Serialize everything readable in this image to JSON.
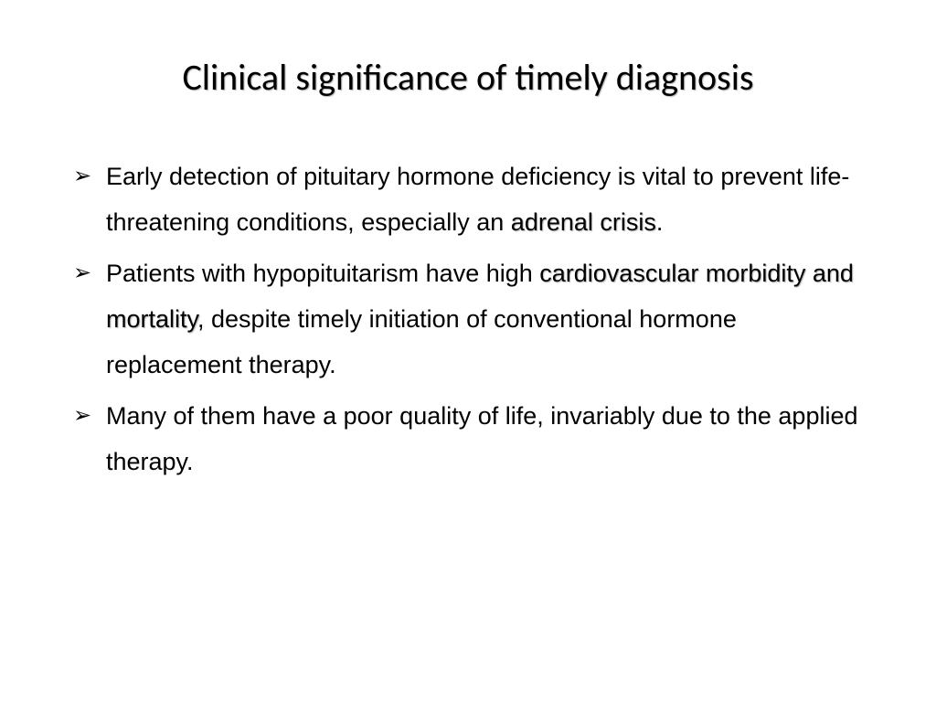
{
  "title": "Clinical significance of timely diagnosis",
  "bullets": [
    {
      "pre": "Early detection of pituitary hormone deficiency is vital to prevent life-threatening conditions, especially an ",
      "emph": "adrenal crisis",
      "post": "."
    },
    {
      "pre": "Patients with hypopituitarism have high ",
      "emph": "cardiovascular morbidity and mortality",
      "post": ", despite timely initiation of conventional hormone replacement therapy."
    },
    {
      "pre": "Many of them have a poor quality of life, invariably due to the applied therapy.",
      "emph": "",
      "post": ""
    }
  ]
}
